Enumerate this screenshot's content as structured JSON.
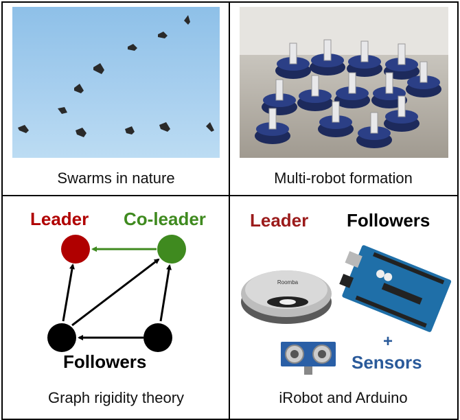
{
  "panels": {
    "top_left": {
      "caption": "Swarms in nature",
      "image_icon": "flying-birds-icon"
    },
    "top_right": {
      "caption": "Multi-robot formation",
      "image_icon": "robot-swarm-icon"
    },
    "bottom_left": {
      "caption": "Graph rigidity theory",
      "leader_label": "Leader",
      "coleader_label": "Co-leader",
      "followers_label": "Followers",
      "colors": {
        "leader": "#b00000",
        "coleader": "#3f8a1f",
        "follower": "#000000"
      }
    },
    "bottom_right": {
      "caption": "iRobot and Arduino",
      "leader_label": "Leader",
      "followers_label": "Followers",
      "plus_label": "+",
      "sensors_label": "Sensors",
      "colors": {
        "leader": "#9b1b1b",
        "sensors": "#2a5a9a"
      },
      "icons": [
        "roomba-robot-icon",
        "arduino-board-icon",
        "ultrasonic-sensor-icon"
      ],
      "roomba_brand": "Roomba"
    }
  }
}
